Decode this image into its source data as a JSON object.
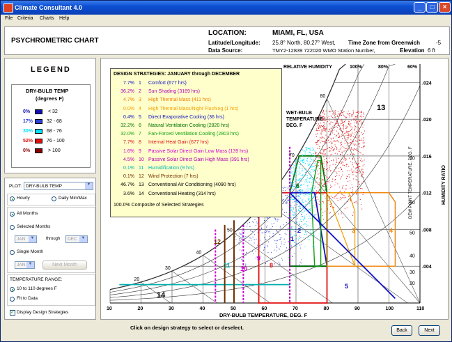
{
  "window": {
    "title": "Climate Consultant 4.0"
  },
  "menu": [
    "File",
    "Criteria",
    "Charts",
    "Help"
  ],
  "header": {
    "chart_title": "PSYCHROMETRIC CHART",
    "location_label": "LOCATION:",
    "location_value": "MIAMI, FL, USA",
    "latlon_label": "Latitude/Longitude:",
    "latlon_value": "25.8° North, 80.27° West,",
    "timezone_label": "Time Zone from Greenwich",
    "timezone_value": "-5",
    "source_label": "Data Source:",
    "source_value": "TMY2-12839    722020 WMO Station Number,",
    "elevation_label": "Elevation",
    "elevation_value": "6 ft"
  },
  "legend": {
    "title": "LEGEND",
    "heading1": "DRY-BULB TEMP",
    "heading2": "(degrees F)",
    "rows": [
      {
        "pct": "0%",
        "range": "< 32",
        "color": "#1010b0"
      },
      {
        "pct": "17%",
        "range": "32 - 68",
        "color": "#2a40d8"
      },
      {
        "pct": "30%",
        "range": "68 - 76",
        "color": "#00e0ff"
      },
      {
        "pct": "52%",
        "range": "76 - 100",
        "color": "#e01010"
      },
      {
        "pct": "0%",
        "range": "> 100",
        "color": "#8a0000"
      }
    ]
  },
  "controls": {
    "plot_label": "PLOT:",
    "plot_value": "DRY-BULB TEMP",
    "hourly": "Hourly",
    "daily": "Daily Min/Max",
    "all_months": "All Months",
    "selected_months": "Selected Months",
    "from_month": "JAN",
    "through": "through",
    "to_month": "DEC",
    "single_month": "Single Month",
    "single_value": "JAN",
    "next_month": "Next Month",
    "temp_range_label": "TEMPERATURE RANGE:",
    "range_option1": "10 to 110 degrees F",
    "range_option2": "Fit to Data",
    "display_strategies": "Display Design Strategies"
  },
  "strategies": {
    "title": "DESIGN STRATEGIES:  JANUARY through DECEMBER",
    "items": [
      {
        "pct": "7.7%",
        "num": "1",
        "name": "Comfort (677 hrs)",
        "color": "#1010c0"
      },
      {
        "pct": "36.2%",
        "num": "2",
        "name": "Sun Shading (3169 hrs)",
        "color": "#b000b0"
      },
      {
        "pct": "4.7%",
        "num": "3",
        "name": "High Thermal Mass (411 hrs)",
        "color": "#f08000"
      },
      {
        "pct": "0.0%",
        "num": "4",
        "name": "High Thermal Mass/Night Flushing (1 hrs)",
        "color": "#f0a000"
      },
      {
        "pct": "0.4%",
        "num": "5",
        "name": "Direct Evaporative Cooling (36 hrs)",
        "color": "#1010c0"
      },
      {
        "pct": "32.2%",
        "num": "6",
        "name": "Natural Ventilation Cooling (2820 hrs)",
        "color": "#007000"
      },
      {
        "pct": "32.0%",
        "num": "7",
        "name": "Fan-Forced Ventilation Cooling (2803 hrs)",
        "color": "#10a010"
      },
      {
        "pct": "7.7%",
        "num": "8",
        "name": "Internal Heat Gain (677 hrs)",
        "color": "#e01010"
      },
      {
        "pct": "1.6%",
        "num": "9",
        "name": "Passive Solar Direct Gain Low Mass (139 hrs)",
        "color": "#d000d0"
      },
      {
        "pct": "4.5%",
        "num": "10",
        "name": "Passive Solar Direct Gain High Mass (391 hrs)",
        "color": "#b000b0"
      },
      {
        "pct": "0.1%",
        "num": "11",
        "name": "Humidification (9 hrs)",
        "color": "#00b0b0"
      },
      {
        "pct": "0.1%",
        "num": "12",
        "name": "Wind Protection (7 hrs)",
        "color": "#703000"
      },
      {
        "pct": "46.7%",
        "num": "13",
        "name": "Conventional Air Conditioning (4090 hrs)",
        "color": "#000000"
      },
      {
        "pct": "3.6%",
        "num": "14",
        "name": "Conventional Heating (314 hrs)",
        "color": "#000000"
      }
    ],
    "composite": "100.0%  Composite of Selected Strategies"
  },
  "chart_labels": {
    "relative_humidity": "RELATIVE HUMIDITY",
    "rh_ticks": [
      "100%",
      "80%",
      "60%"
    ],
    "wet_bulb": [
      "WET-BULB",
      "TEMPERATURE",
      "DEG. F"
    ],
    "dew_point": "DEW POINT TEMPERATURE, DEG. F",
    "humidity_ratio": "HUMIDITY RATIO",
    "x_axis": "DRY-BULB TEMPERATURE, DEG. F",
    "x_ticks": [
      "10",
      "20",
      "30",
      "40",
      "50",
      "60",
      "70",
      "80",
      "90",
      "100",
      "110"
    ],
    "hr_ticks": [
      ".020",
      ".016",
      ".012",
      ".008",
      ".004"
    ],
    "hr_ticks_mid": [
      ".024"
    ],
    "dp_ticks": [
      "70",
      "60",
      "50",
      "40",
      "30",
      "20"
    ],
    "wb_ticks": [
      "20",
      "30",
      "40",
      "50",
      "60",
      "70",
      "80"
    ],
    "zone_numbers": [
      "13",
      "14",
      "12",
      "11",
      "10",
      "9",
      "8",
      "1",
      "2",
      "3",
      "4",
      "5",
      "6",
      "7"
    ]
  },
  "footer": {
    "hint": "Click on design strategy to select or deselect.",
    "back": "Back",
    "next": "Next"
  }
}
